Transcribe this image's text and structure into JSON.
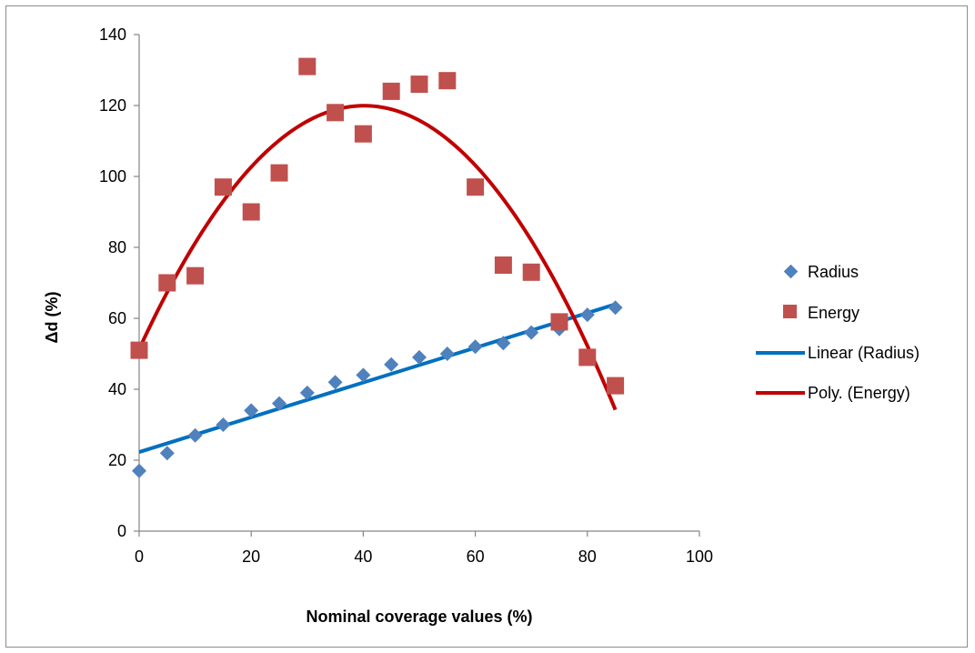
{
  "chart_data": {
    "type": "scatter",
    "xlabel": "Nominal coverage values (%)",
    "ylabel": "Δd  (%)",
    "xlim": [
      0,
      100
    ],
    "ylim": [
      0,
      140
    ],
    "x_ticks": [
      "0",
      "20",
      "40",
      "60",
      "80",
      "100"
    ],
    "y_ticks": [
      "0",
      "20",
      "40",
      "60",
      "80",
      "100",
      "120",
      "140"
    ],
    "grid": false,
    "legend_position": "right",
    "series": [
      {
        "name": "Radius",
        "kind": "scatter",
        "marker": "diamond",
        "color": "#4f81bd",
        "x": [
          0,
          5,
          10,
          15,
          20,
          25,
          30,
          35,
          40,
          45,
          50,
          55,
          60,
          65,
          70,
          75,
          80,
          85
        ],
        "y": [
          17,
          22,
          27,
          30,
          34,
          36,
          39,
          42,
          44,
          47,
          49,
          50,
          52,
          53,
          56,
          57,
          61,
          63
        ]
      },
      {
        "name": "Energy",
        "kind": "scatter",
        "marker": "square",
        "color": "#c0504d",
        "x": [
          0,
          5,
          10,
          15,
          20,
          25,
          30,
          35,
          40,
          45,
          50,
          55,
          60,
          65,
          70,
          75,
          80,
          85
        ],
        "y": [
          51,
          70,
          72,
          97,
          90,
          101,
          131,
          118,
          112,
          124,
          126,
          127,
          97,
          75,
          73,
          59,
          49,
          41
        ]
      },
      {
        "name": "Linear (Radius)",
        "kind": "trendline-linear",
        "color": "#0070c0",
        "x_range": [
          0,
          85
        ],
        "intercept": 22.3,
        "slope": 0.49
      },
      {
        "name": "Poly. (Energy)",
        "kind": "trendline-poly2",
        "color": "#c00000",
        "x_range": [
          0,
          85
        ],
        "coefficients": [
          51.3,
          3.42,
          -0.0426
        ]
      }
    ]
  }
}
